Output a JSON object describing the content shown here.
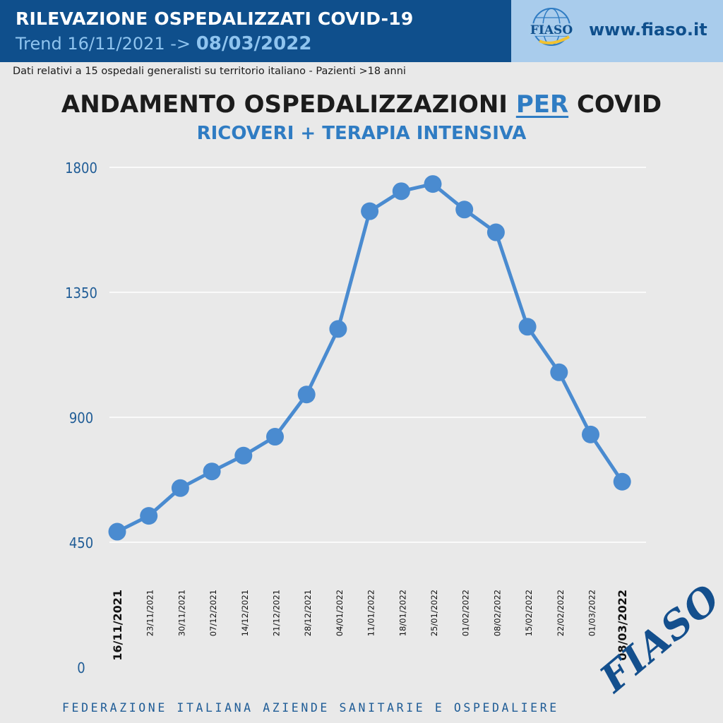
{
  "header": {
    "title": "RILEVAZIONE OSPEDALIZZATI COVID-19",
    "trend_prefix": "Trend 16/11/2021 ->",
    "trend_end": "08/03/2022",
    "website": "www.fiaso.it",
    "logo_text": "FIASO"
  },
  "subtitle": "Dati relativi a 15 ospedali generalisti su territorio italiano - Pazienti >18 anni",
  "footer": "FEDERAZIONE ITALIANA AZIENDE SANITARIE E OSPEDALIERE",
  "watermark": "FIASO",
  "colors": {
    "header_bg": "#0f4f8c",
    "accent": "#2f7cc3",
    "series": "#4a8bd0",
    "background": "#e9e9e9"
  },
  "chart_data": {
    "type": "line",
    "title_parts": [
      "ANDAMENTO OSPEDALIZZAZIONI ",
      "PER",
      " COVID"
    ],
    "subtitle": "RICOVERI + TERAPIA INTENSIVA",
    "x": [
      "16/11/2021",
      "23/11/2021",
      "30/11/2021",
      "07/12/2021",
      "14/12/2021",
      "21/12/2021",
      "28/12/2021",
      "04/01/2022",
      "11/01/2022",
      "18/01/2022",
      "25/01/2022",
      "01/02/2022",
      "08/02/2022",
      "15/02/2022",
      "22/02/2022",
      "01/03/2022",
      "08/03/2022"
    ],
    "bold_x": [
      "16/11/2021",
      "08/03/2022"
    ],
    "values": [
      488,
      545,
      645,
      705,
      762,
      830,
      982,
      1218,
      1642,
      1714,
      1740,
      1648,
      1566,
      1226,
      1062,
      838,
      668
    ],
    "yticks": [
      0,
      450,
      900,
      1350,
      1800
    ],
    "ylim": [
      0,
      1800
    ],
    "grid": true,
    "legend": "none"
  }
}
